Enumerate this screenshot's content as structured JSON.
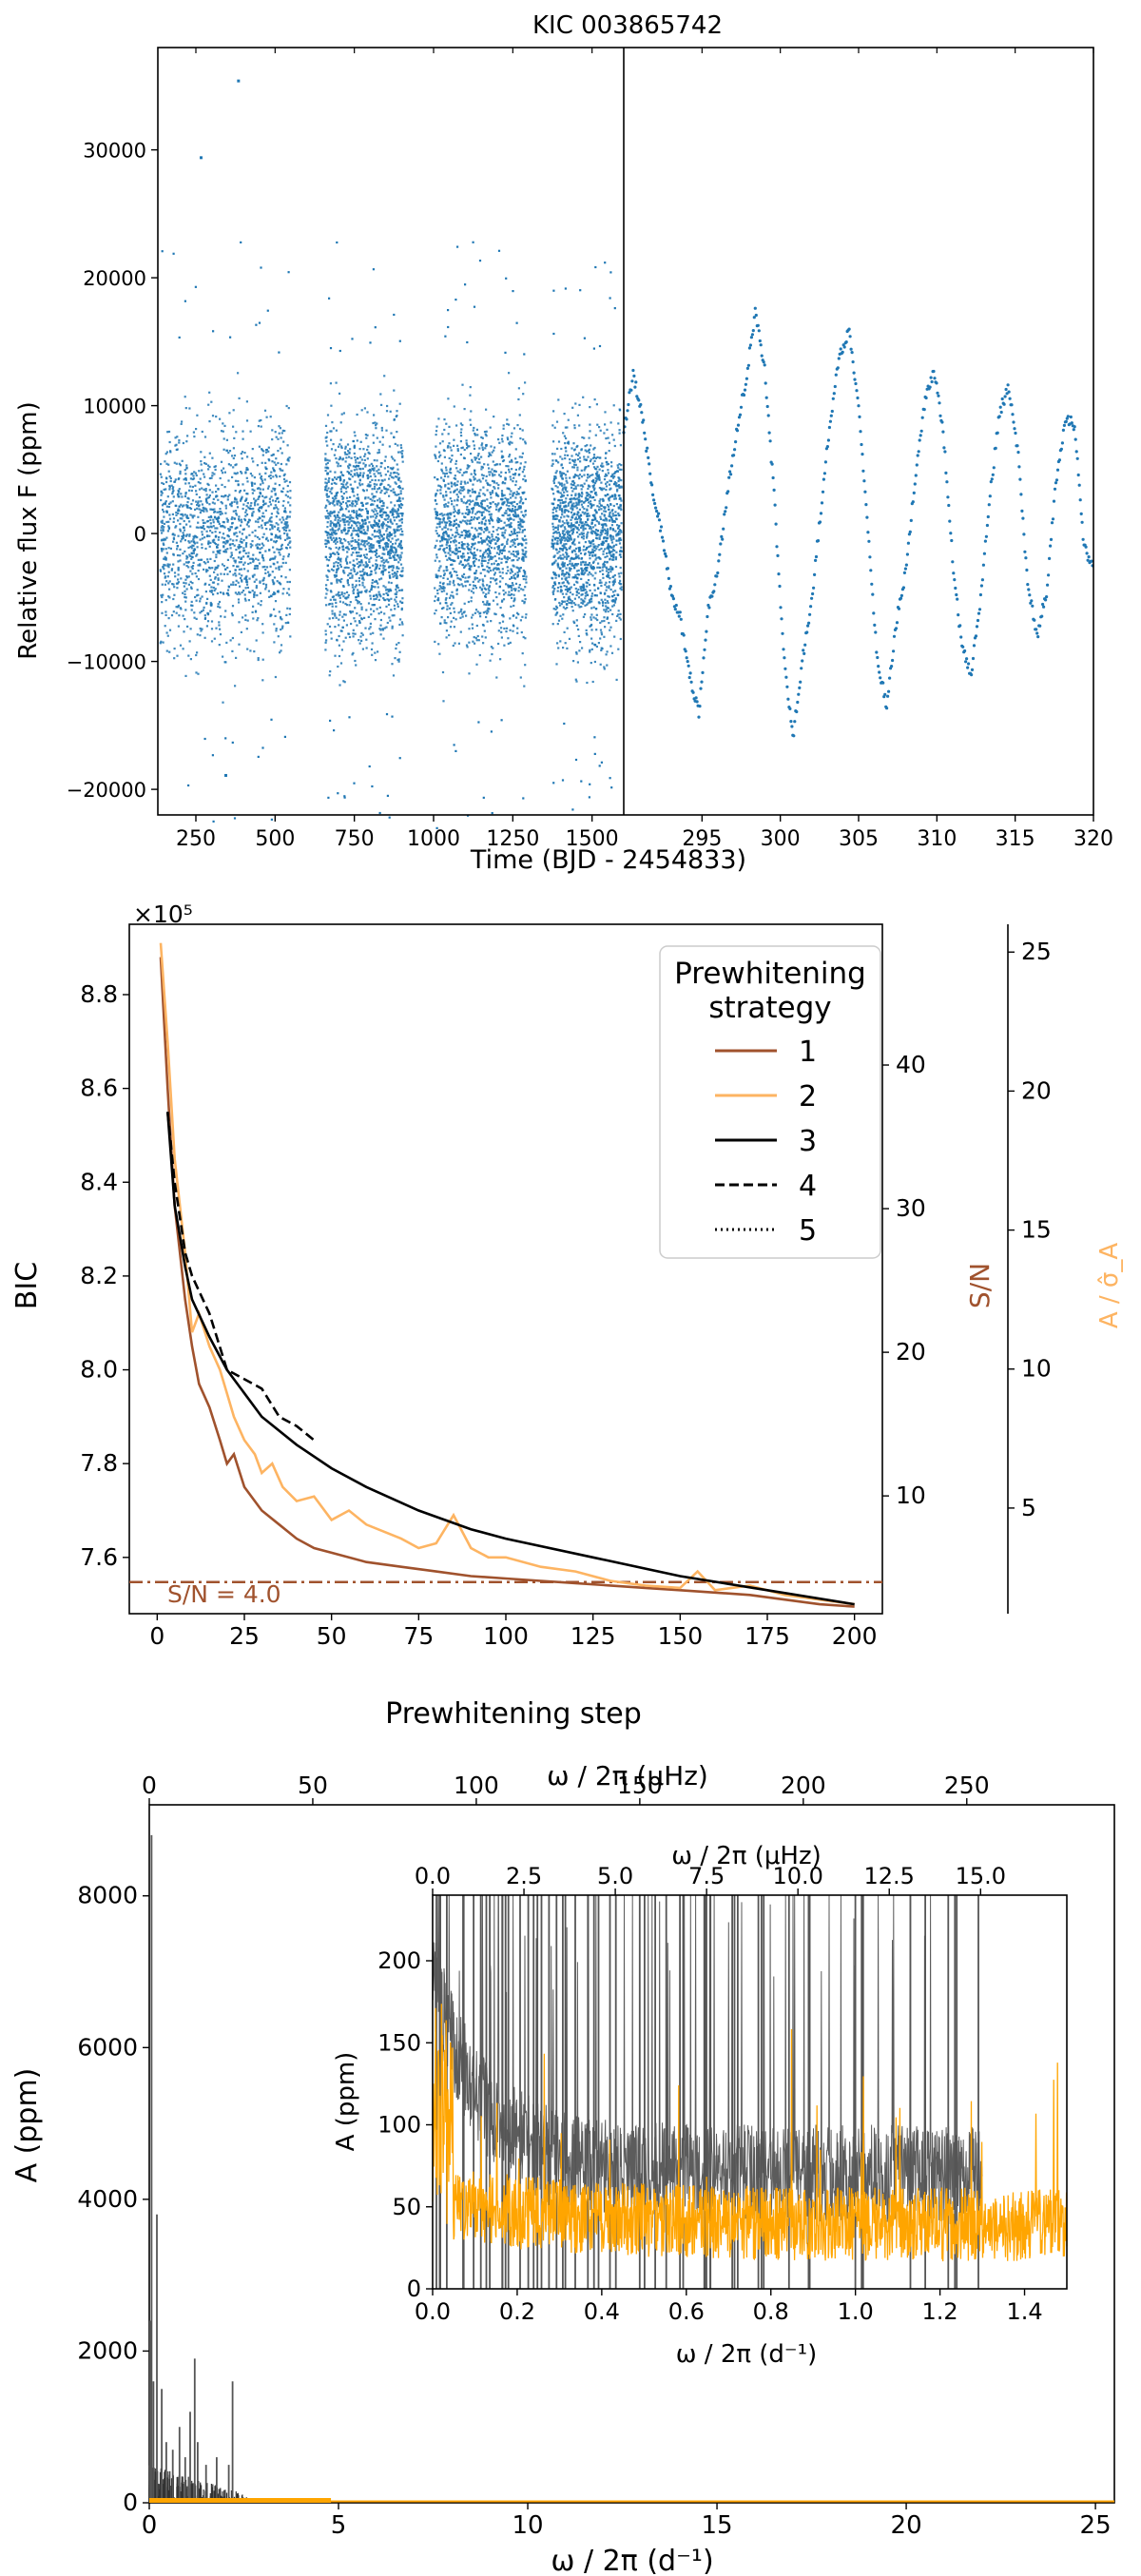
{
  "chart_data": [
    {
      "type": "scatter",
      "title": "KIC 003865742",
      "ylabel": "Relative flux F (ppm)",
      "xlabel": "Time (BJD - 2454833)",
      "left_panel": {
        "xlim": [
          130,
          1600
        ],
        "ylim": [
          -22000,
          38000
        ],
        "xticks": [
          250,
          500,
          750,
          1000,
          1250,
          1500
        ],
        "yticks": [
          -20000,
          -10000,
          0,
          10000,
          20000,
          30000
        ],
        "yticklabels": [
          "−20000",
          "−10000",
          "0",
          "10000",
          "20000",
          "30000"
        ],
        "segments": [
          [
            135,
            545
          ],
          [
            655,
            900
          ],
          [
            1000,
            1290
          ],
          [
            1370,
            1590
          ]
        ],
        "typical_range_ppm": [
          -14000,
          15000
        ],
        "extremes_ppm": [
          35500,
          -18800
        ]
      },
      "right_panel": {
        "xlim": [
          290,
          320
        ],
        "ylim": [
          -22000,
          38000
        ],
        "xticks": [
          295,
          300,
          305,
          310,
          315,
          320
        ],
        "x": [
          290.0,
          290.6,
          291.2,
          291.8,
          292.4,
          293.0,
          293.6,
          294.2,
          294.8,
          295.4,
          296.0,
          296.6,
          297.2,
          297.8,
          298.4,
          299.0,
          299.6,
          300.2,
          300.8,
          301.4,
          302.0,
          302.6,
          303.2,
          303.8,
          304.4,
          305.0,
          305.6,
          306.2,
          306.8,
          307.4,
          308.0,
          308.6,
          309.2,
          309.8,
          310.4,
          311.0,
          311.6,
          312.2,
          312.8,
          313.4,
          314.0,
          314.6,
          315.2,
          315.8,
          316.4,
          317.0,
          317.6,
          318.2,
          318.8,
          319.4,
          320.0
        ],
        "y": [
          8000,
          12500,
          9000,
          3500,
          200,
          -4500,
          -6500,
          -11000,
          -14000,
          -6000,
          -3000,
          3000,
          8000,
          12000,
          17200,
          13000,
          3000,
          -9000,
          -16000,
          -10000,
          -5500,
          2000,
          9000,
          14000,
          15800,
          10000,
          0,
          -10000,
          -13500,
          -7000,
          -3000,
          4000,
          10000,
          12800,
          8000,
          -2000,
          -9000,
          -11000,
          -5000,
          3000,
          9500,
          11500,
          6000,
          -4000,
          -8000,
          -4500,
          4000,
          9000,
          8500,
          -1000,
          -3000
        ]
      },
      "colors": {
        "points": "#1f77b4",
        "divider": "#000000"
      }
    },
    {
      "type": "line",
      "title": "",
      "xlabel": "Prewhitening step",
      "ylabel": "BIC",
      "y_offset_label": "×10⁵",
      "xlim": [
        -8,
        208
      ],
      "ylim": [
        7.48,
        8.95
      ],
      "xticks": [
        0,
        25,
        50,
        75,
        100,
        125,
        150,
        175,
        200
      ],
      "yticks": [
        7.6,
        7.8,
        8.0,
        8.2,
        8.4,
        8.6,
        8.8
      ],
      "secondary_axes": [
        {
          "label": "S/N",
          "ylim": [
            1.8,
            49.8
          ],
          "ticks": [
            10,
            20,
            30,
            40
          ],
          "color": "#a0522d"
        },
        {
          "label": "A / σ̂_A",
          "ylim": [
            1.2,
            26.0
          ],
          "ticks": [
            5,
            10,
            15,
            20,
            25
          ],
          "color": "#fdb462"
        }
      ],
      "threshold": {
        "label": "S/N = 4.0",
        "value_sn": 4.0
      },
      "legend": {
        "title_line1": "Prewhitening",
        "title_line2": "strategy",
        "location": "upper-right"
      },
      "series": [
        {
          "name": "1",
          "color": "#a0522d",
          "style": "solid",
          "x": [
            1,
            3,
            5,
            8,
            10,
            12,
            15,
            18,
            20,
            22,
            25,
            28,
            30,
            35,
            40,
            45,
            50,
            60,
            70,
            80,
            90,
            100,
            110,
            120,
            130,
            140,
            150,
            160,
            170,
            180,
            190,
            200
          ],
          "y": [
            8.88,
            8.6,
            8.35,
            8.15,
            8.05,
            7.97,
            7.92,
            7.85,
            7.8,
            7.82,
            7.75,
            7.72,
            7.7,
            7.67,
            7.64,
            7.62,
            7.61,
            7.59,
            7.58,
            7.57,
            7.56,
            7.555,
            7.55,
            7.545,
            7.54,
            7.535,
            7.53,
            7.525,
            7.52,
            7.51,
            7.5,
            7.495
          ]
        },
        {
          "name": "2",
          "color": "#fdb462",
          "style": "solid",
          "x": [
            1,
            3,
            5,
            8,
            10,
            12,
            15,
            18,
            20,
            22,
            25,
            28,
            30,
            33,
            36,
            40,
            45,
            50,
            55,
            60,
            70,
            75,
            80,
            85,
            90,
            95,
            100,
            110,
            120,
            130,
            140,
            150,
            155,
            160,
            170,
            180,
            190,
            200
          ],
          "y": [
            8.91,
            8.7,
            8.45,
            8.25,
            8.08,
            8.12,
            8.05,
            8.0,
            7.95,
            7.9,
            7.85,
            7.82,
            7.78,
            7.8,
            7.75,
            7.72,
            7.73,
            7.68,
            7.7,
            7.67,
            7.64,
            7.62,
            7.63,
            7.69,
            7.62,
            7.6,
            7.6,
            7.58,
            7.57,
            7.55,
            7.54,
            7.535,
            7.57,
            7.53,
            7.54,
            7.52,
            7.51,
            7.5
          ]
        },
        {
          "name": "3",
          "color": "#000000",
          "style": "solid",
          "x": [
            3,
            5,
            8,
            10,
            15,
            20,
            25,
            30,
            40,
            50,
            60,
            75,
            90,
            100,
            125,
            150,
            175,
            200
          ],
          "y": [
            8.55,
            8.35,
            8.22,
            8.15,
            8.07,
            8.0,
            7.95,
            7.9,
            7.84,
            7.79,
            7.75,
            7.7,
            7.66,
            7.64,
            7.6,
            7.56,
            7.53,
            7.5
          ]
        },
        {
          "name": "4",
          "color": "#000000",
          "style": "dashed",
          "x": [
            3,
            5,
            8,
            10,
            15,
            20,
            25,
            30,
            35,
            40,
            45
          ],
          "y": [
            8.55,
            8.4,
            8.25,
            8.2,
            8.12,
            8.0,
            7.98,
            7.96,
            7.9,
            7.88,
            7.85
          ]
        },
        {
          "name": "5",
          "color": "#000000",
          "style": "dotted",
          "x": [],
          "y": []
        }
      ]
    },
    {
      "type": "line",
      "title": "",
      "xlabel": "ω / 2π (d⁻¹)",
      "x2label": "ω / 2π (μHz)",
      "ylabel": "A (ppm)",
      "xlim": [
        0,
        25.5
      ],
      "ylim": [
        0,
        9200
      ],
      "xticks": [
        0,
        5,
        10,
        15,
        20,
        25
      ],
      "yticks": [
        0,
        2000,
        4000,
        6000,
        8000
      ],
      "x2ticks": [
        0,
        50,
        100,
        150,
        200,
        250
      ],
      "peaks": [
        {
          "x": 0.06,
          "amp": 8800
        },
        {
          "x": 0.02,
          "amp": 2400
        },
        {
          "x": 0.2,
          "amp": 3800
        },
        {
          "x": 0.11,
          "amp": 1600
        },
        {
          "x": 0.33,
          "amp": 1500
        },
        {
          "x": 0.45,
          "amp": 800
        },
        {
          "x": 0.62,
          "amp": 700
        },
        {
          "x": 0.8,
          "amp": 1000
        },
        {
          "x": 0.95,
          "amp": 600
        },
        {
          "x": 1.08,
          "amp": 1200
        },
        {
          "x": 1.2,
          "amp": 1900
        },
        {
          "x": 1.28,
          "amp": 800
        },
        {
          "x": 1.5,
          "amp": 500
        },
        {
          "x": 1.78,
          "amp": 600
        },
        {
          "x": 2.1,
          "amp": 500
        },
        {
          "x": 2.2,
          "amp": 1600
        }
      ],
      "residual": {
        "color": "#ffa500",
        "extent": 4.8
      },
      "inset": {
        "xlabel": "ω / 2π (d⁻¹)",
        "x2label": "ω / 2π (μHz)",
        "ylabel": "A (ppm)",
        "xlim": [
          0,
          1.5
        ],
        "ylim": [
          0,
          240
        ],
        "xticks": [
          0.0,
          0.2,
          0.4,
          0.6,
          0.8,
          1.0,
          1.2,
          1.4
        ],
        "xticklabels": [
          "0.0",
          "0.2",
          "0.4",
          "0.6",
          "0.8",
          "1.0",
          "1.2",
          "1.4"
        ],
        "yticks": [
          0,
          50,
          100,
          150,
          200
        ],
        "x2ticks": [
          0.0,
          2.5,
          5.0,
          7.5,
          10.0,
          12.5,
          15.0
        ],
        "x2ticklabels": [
          "0.0",
          "2.5",
          "5.0",
          "7.5",
          "10.0",
          "12.5",
          "15.0"
        ],
        "orange_level_ppm": 30,
        "orange_envelope_max_ppm": 170
      },
      "colors": {
        "spectrum": "#555555",
        "residual": "#ffa500"
      }
    }
  ]
}
